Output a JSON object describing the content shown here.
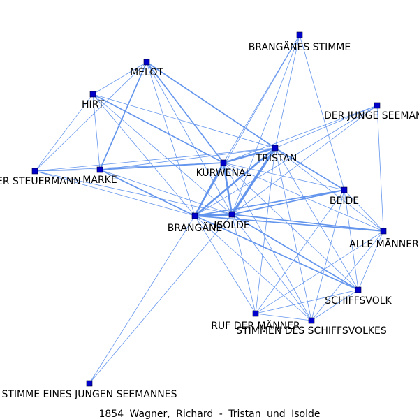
{
  "caption": "1854  Wagner,  Richard  -  Tristan  und  Isolde",
  "colors": {
    "edge": "#6495ED",
    "node_fill": "#0000CC",
    "node_stroke": "#000033"
  },
  "nodes": [
    {
      "id": "brangaenes_stimme",
      "label": "BRANGÄNES STIMME"
    },
    {
      "id": "melot",
      "label": "MELOT"
    },
    {
      "id": "hirt",
      "label": "HIRT"
    },
    {
      "id": "der_junge_seemann",
      "label": "DER JUNGE SEEMANN"
    },
    {
      "id": "tristan",
      "label": "TRISTAN"
    },
    {
      "id": "kurwenal",
      "label": "KURWENAL"
    },
    {
      "id": "der_steuermann",
      "label": "DER STEUERMANN"
    },
    {
      "id": "marke",
      "label": "MARKE"
    },
    {
      "id": "beide",
      "label": "BEIDE"
    },
    {
      "id": "brangaene",
      "label": "BRANGÄNE"
    },
    {
      "id": "isolde",
      "label": "ISOLDE"
    },
    {
      "id": "alle_maenner",
      "label": "ALLE MÄNNER"
    },
    {
      "id": "schiffsvolk",
      "label": "SCHIFFSVOLK"
    },
    {
      "id": "ruf_der_maenner",
      "label": "RUF DER MÄNNER"
    },
    {
      "id": "stimmen_des_schiffsvolkes",
      "label": "STIMMEN DES SCHIFFSVOLKES"
    },
    {
      "id": "stimme_eines_jungen_seemannes",
      "label": "STIMME EINES JUNGEN SEEMANNES"
    }
  ],
  "edges": [
    [
      "brangaenes_stimme",
      "tristan",
      1
    ],
    [
      "brangaenes_stimme",
      "kurwenal",
      1
    ],
    [
      "brangaenes_stimme",
      "isolde",
      1
    ],
    [
      "brangaenes_stimme",
      "beide",
      1
    ],
    [
      "brangaenes_stimme",
      "brangaene",
      1
    ],
    [
      "melot",
      "hirt",
      1
    ],
    [
      "melot",
      "marke",
      2
    ],
    [
      "melot",
      "kurwenal",
      2
    ],
    [
      "melot",
      "tristan",
      2
    ],
    [
      "melot",
      "isolde",
      1
    ],
    [
      "melot",
      "brangaene",
      1
    ],
    [
      "melot",
      "der_steuermann",
      1
    ],
    [
      "hirt",
      "marke",
      1
    ],
    [
      "hirt",
      "kurwenal",
      2
    ],
    [
      "hirt",
      "tristan",
      1
    ],
    [
      "hirt",
      "der_steuermann",
      1
    ],
    [
      "hirt",
      "brangaene",
      1
    ],
    [
      "hirt",
      "isolde",
      1
    ],
    [
      "der_junge_seemann",
      "tristan",
      1
    ],
    [
      "der_junge_seemann",
      "kurwenal",
      1
    ],
    [
      "der_junge_seemann",
      "isolde",
      1
    ],
    [
      "der_junge_seemann",
      "brangaene",
      1
    ],
    [
      "der_junge_seemann",
      "alle_maenner",
      1
    ],
    [
      "tristan",
      "kurwenal",
      3
    ],
    [
      "tristan",
      "isolde",
      4
    ],
    [
      "tristan",
      "brangaene",
      3
    ],
    [
      "tristan",
      "marke",
      1
    ],
    [
      "tristan",
      "beide",
      2
    ],
    [
      "tristan",
      "alle_maenner",
      1
    ],
    [
      "tristan",
      "schiffsvolk",
      1
    ],
    [
      "tristan",
      "ruf_der_maenner",
      1
    ],
    [
      "tristan",
      "stimmen_des_schiffsvolkes",
      1
    ],
    [
      "tristan",
      "der_steuermann",
      1
    ],
    [
      "kurwenal",
      "isolde",
      3
    ],
    [
      "kurwenal",
      "brangaene",
      3
    ],
    [
      "kurwenal",
      "marke",
      2
    ],
    [
      "kurwenal",
      "beide",
      1
    ],
    [
      "kurwenal",
      "alle_maenner",
      1
    ],
    [
      "kurwenal",
      "schiffsvolk",
      1
    ],
    [
      "kurwenal",
      "stimmen_des_schiffsvolkes",
      1
    ],
    [
      "kurwenal",
      "der_steuermann",
      1
    ],
    [
      "der_steuermann",
      "marke",
      1
    ],
    [
      "der_steuermann",
      "isolde",
      1
    ],
    [
      "der_steuermann",
      "brangaene",
      1
    ],
    [
      "marke",
      "brangaene",
      2
    ],
    [
      "marke",
      "isolde",
      1
    ],
    [
      "beide",
      "isolde",
      2
    ],
    [
      "beide",
      "brangaene",
      2
    ],
    [
      "beide",
      "alle_maenner",
      1
    ],
    [
      "beide",
      "schiffsvolk",
      1
    ],
    [
      "beide",
      "ruf_der_maenner",
      1
    ],
    [
      "beide",
      "stimmen_des_schiffsvolkes",
      1
    ],
    [
      "brangaene",
      "isolde",
      4
    ],
    [
      "brangaene",
      "alle_maenner",
      2
    ],
    [
      "brangaene",
      "schiffsvolk",
      2
    ],
    [
      "brangaene",
      "ruf_der_maenner",
      1
    ],
    [
      "brangaene",
      "stimmen_des_schiffsvolkes",
      1
    ],
    [
      "brangaene",
      "stimme_eines_jungen_seemannes",
      1
    ],
    [
      "isolde",
      "alle_maenner",
      2
    ],
    [
      "isolde",
      "schiffsvolk",
      2
    ],
    [
      "isolde",
      "ruf_der_maenner",
      1
    ],
    [
      "isolde",
      "stimmen_des_schiffsvolkes",
      1
    ],
    [
      "isolde",
      "stimme_eines_jungen_seemannes",
      1
    ],
    [
      "alle_maenner",
      "schiffsvolk",
      1
    ],
    [
      "alle_maenner",
      "ruf_der_maenner",
      1
    ],
    [
      "alle_maenner",
      "stimmen_des_schiffsvolkes",
      1
    ],
    [
      "schiffsvolk",
      "ruf_der_maenner",
      1
    ],
    [
      "schiffsvolk",
      "stimmen_des_schiffsvolkes",
      1
    ],
    [
      "ruf_der_maenner",
      "stimmen_des_schiffsvolkes",
      1
    ]
  ]
}
